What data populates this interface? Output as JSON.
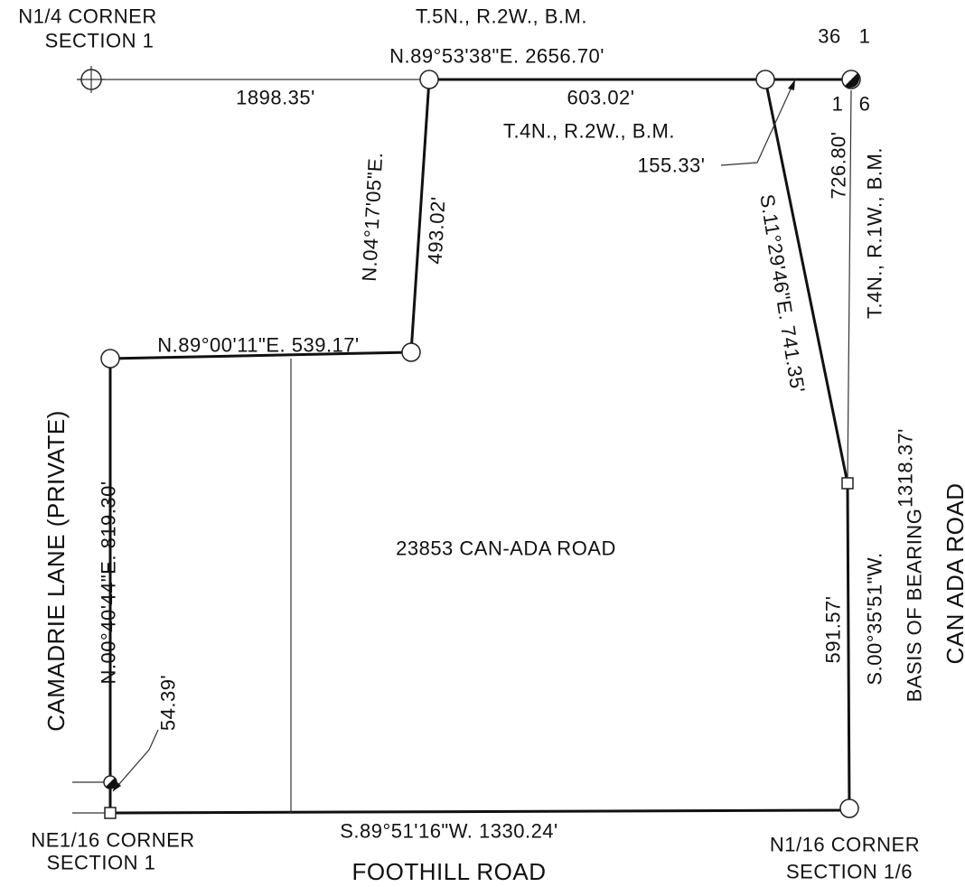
{
  "labels": {
    "n14_corner": "N1/4 CORNER",
    "n14_section": "SECTION 1",
    "t5n": "T.5N., R.2W., B.M.",
    "north_bearing": "N.89°53'38\"E.  2656.70'",
    "sec36": "36",
    "sec1_top": "1",
    "sec1_bottom": "1",
    "sec6": "6",
    "dist_1898": "1898.35'",
    "dist_603": "603.02'",
    "t4n_r2w": "T.4N., R.2W., B.M.",
    "dist_155": "155.33'",
    "bearing_n04": "N.04°17'05\"E.",
    "dist_493": "493.02'",
    "bearing_s11": "S.11°29'46\"E.  741.35'",
    "dist_726": "726.80'",
    "t4n_r1w": "T.4N., R.1W., B.M.",
    "bearing_n89_00": "N.89°00'11\"E.  539.17'",
    "camadrie": "CAMADRIE LANE (PRIVATE)",
    "bearing_n00": "N.00°40'44\"E.  819.30'",
    "dist_54": "54.39'",
    "dist_1318": "1318.37'",
    "bearing_s00": "S.00°35'51\"W.",
    "basis": "BASIS OF BEARING",
    "can_ada_road": "CAN ADA ROAD",
    "dist_591": "591.57'",
    "address": "23853 CAN-ADA ROAD",
    "ne116_corner": "NE1/16 CORNER",
    "ne116_section": "SECTION 1",
    "south_bearing": "S.89°51'16\"W.   1330.24'",
    "foothill": "FOOTHILL ROAD",
    "n116_corner": "N1/16 CORNER",
    "n116_section": "SECTION 1/6"
  }
}
